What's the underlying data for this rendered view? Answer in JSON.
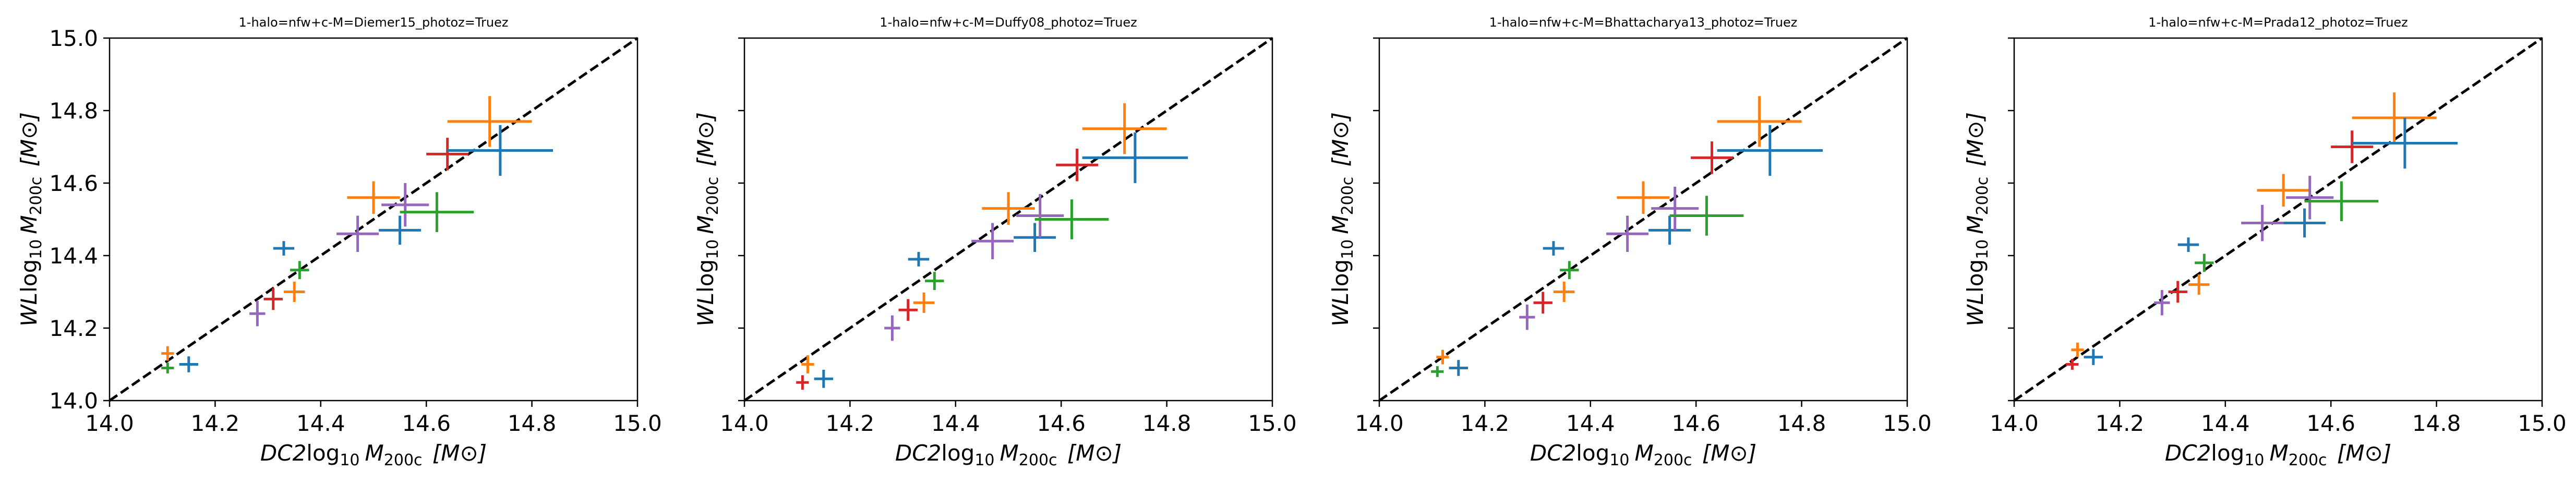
{
  "colors": {
    "blue": "#1f77b4",
    "orange": "#ff7f0e",
    "green": "#2ca02c",
    "red": "#d62728",
    "purple": "#9467bd",
    "reference_line": "#000000"
  },
  "chart_data": [
    {
      "type": "scatter",
      "title": "1-halo=nfw+c-M=Diemer15_photoz=Truez",
      "xlabel": "DC2log10 M200c [M⊙]",
      "ylabel": "WLlog10 M200c [M⊙]",
      "xlim": [
        14.0,
        15.0
      ],
      "ylim": [
        14.0,
        15.0
      ],
      "x_ticks": [
        "14.0",
        "14.2",
        "14.4",
        "14.6",
        "14.8",
        "15.0"
      ],
      "y_ticks": [
        "14.0",
        "14.2",
        "14.4",
        "14.6",
        "14.8",
        "15.0"
      ],
      "reference_line": "y = x (dashed black)",
      "grid": false,
      "points": [
        {
          "x": 14.11,
          "y": 14.09,
          "xerr": 0.012,
          "yerr": 0.015,
          "color": "green"
        },
        {
          "x": 14.11,
          "y": 14.13,
          "xerr": 0.012,
          "yerr": 0.02,
          "color": "orange"
        },
        {
          "x": 14.15,
          "y": 14.1,
          "xerr": 0.018,
          "yerr": 0.022,
          "color": "blue"
        },
        {
          "x": 14.28,
          "y": 14.24,
          "xerr": 0.015,
          "yerr": 0.035,
          "color": "purple"
        },
        {
          "x": 14.31,
          "y": 14.28,
          "xerr": 0.018,
          "yerr": 0.03,
          "color": "red"
        },
        {
          "x": 14.35,
          "y": 14.3,
          "xerr": 0.02,
          "yerr": 0.028,
          "color": "orange"
        },
        {
          "x": 14.36,
          "y": 14.36,
          "xerr": 0.018,
          "yerr": 0.025,
          "color": "green"
        },
        {
          "x": 14.33,
          "y": 14.42,
          "xerr": 0.02,
          "yerr": 0.02,
          "color": "blue"
        },
        {
          "x": 14.47,
          "y": 14.46,
          "xerr": 0.04,
          "yerr": 0.05,
          "color": "purple"
        },
        {
          "x": 14.5,
          "y": 14.56,
          "xerr": 0.05,
          "yerr": 0.045,
          "color": "orange"
        },
        {
          "x": 14.55,
          "y": 14.47,
          "xerr": 0.04,
          "yerr": 0.04,
          "color": "blue"
        },
        {
          "x": 14.56,
          "y": 14.54,
          "xerr": 0.045,
          "yerr": 0.06,
          "color": "purple"
        },
        {
          "x": 14.62,
          "y": 14.52,
          "xerr": 0.07,
          "yerr": 0.055,
          "color": "green"
        },
        {
          "x": 14.64,
          "y": 14.68,
          "xerr": 0.04,
          "yerr": 0.045,
          "color": "red"
        },
        {
          "x": 14.72,
          "y": 14.77,
          "xerr": 0.08,
          "yerr": 0.07,
          "color": "orange"
        },
        {
          "x": 14.74,
          "y": 14.69,
          "xerr": 0.1,
          "yerr": 0.07,
          "color": "blue"
        }
      ]
    },
    {
      "type": "scatter",
      "title": "1-halo=nfw+c-M=Duffy08_photoz=Truez",
      "xlabel": "DC2log10 M200c [M⊙]",
      "ylabel": "WLlog10 M200c [M⊙]",
      "xlim": [
        14.0,
        15.0
      ],
      "ylim": [
        14.0,
        15.0
      ],
      "x_ticks": [
        "14.0",
        "14.2",
        "14.4",
        "14.6",
        "14.8",
        "15.0"
      ],
      "y_ticks": [],
      "reference_line": "y = x (dashed black)",
      "grid": false,
      "points": [
        {
          "x": 14.11,
          "y": 14.05,
          "xerr": 0.012,
          "yerr": 0.02,
          "color": "red"
        },
        {
          "x": 14.12,
          "y": 14.1,
          "xerr": 0.012,
          "yerr": 0.025,
          "color": "orange"
        },
        {
          "x": 14.15,
          "y": 14.06,
          "xerr": 0.018,
          "yerr": 0.025,
          "color": "blue"
        },
        {
          "x": 14.28,
          "y": 14.2,
          "xerr": 0.015,
          "yerr": 0.035,
          "color": "purple"
        },
        {
          "x": 14.31,
          "y": 14.25,
          "xerr": 0.018,
          "yerr": 0.03,
          "color": "red"
        },
        {
          "x": 14.34,
          "y": 14.27,
          "xerr": 0.02,
          "yerr": 0.028,
          "color": "orange"
        },
        {
          "x": 14.36,
          "y": 14.33,
          "xerr": 0.018,
          "yerr": 0.025,
          "color": "green"
        },
        {
          "x": 14.33,
          "y": 14.39,
          "xerr": 0.02,
          "yerr": 0.02,
          "color": "blue"
        },
        {
          "x": 14.47,
          "y": 14.44,
          "xerr": 0.04,
          "yerr": 0.05,
          "color": "purple"
        },
        {
          "x": 14.5,
          "y": 14.53,
          "xerr": 0.05,
          "yerr": 0.045,
          "color": "orange"
        },
        {
          "x": 14.55,
          "y": 14.45,
          "xerr": 0.04,
          "yerr": 0.04,
          "color": "blue"
        },
        {
          "x": 14.56,
          "y": 14.51,
          "xerr": 0.045,
          "yerr": 0.06,
          "color": "purple"
        },
        {
          "x": 14.62,
          "y": 14.5,
          "xerr": 0.07,
          "yerr": 0.055,
          "color": "green"
        },
        {
          "x": 14.63,
          "y": 14.65,
          "xerr": 0.04,
          "yerr": 0.045,
          "color": "red"
        },
        {
          "x": 14.72,
          "y": 14.75,
          "xerr": 0.08,
          "yerr": 0.07,
          "color": "orange"
        },
        {
          "x": 14.74,
          "y": 14.67,
          "xerr": 0.1,
          "yerr": 0.07,
          "color": "blue"
        }
      ]
    },
    {
      "type": "scatter",
      "title": "1-halo=nfw+c-M=Bhattacharya13_photoz=Truez",
      "xlabel": "DC2log10 M200c [M⊙]",
      "ylabel": "WLlog10 M200c [M⊙]",
      "xlim": [
        14.0,
        15.0
      ],
      "ylim": [
        14.0,
        15.0
      ],
      "x_ticks": [
        "14.0",
        "14.2",
        "14.4",
        "14.6",
        "14.8",
        "15.0"
      ],
      "y_ticks": [],
      "reference_line": "y = x (dashed black)",
      "grid": false,
      "points": [
        {
          "x": 14.11,
          "y": 14.08,
          "xerr": 0.012,
          "yerr": 0.015,
          "color": "green"
        },
        {
          "x": 14.12,
          "y": 14.12,
          "xerr": 0.012,
          "yerr": 0.02,
          "color": "orange"
        },
        {
          "x": 14.15,
          "y": 14.09,
          "xerr": 0.018,
          "yerr": 0.022,
          "color": "blue"
        },
        {
          "x": 14.28,
          "y": 14.23,
          "xerr": 0.015,
          "yerr": 0.035,
          "color": "purple"
        },
        {
          "x": 14.31,
          "y": 14.27,
          "xerr": 0.018,
          "yerr": 0.03,
          "color": "red"
        },
        {
          "x": 14.35,
          "y": 14.3,
          "xerr": 0.02,
          "yerr": 0.028,
          "color": "orange"
        },
        {
          "x": 14.36,
          "y": 14.36,
          "xerr": 0.018,
          "yerr": 0.025,
          "color": "green"
        },
        {
          "x": 14.33,
          "y": 14.42,
          "xerr": 0.02,
          "yerr": 0.02,
          "color": "blue"
        },
        {
          "x": 14.47,
          "y": 14.46,
          "xerr": 0.04,
          "yerr": 0.05,
          "color": "purple"
        },
        {
          "x": 14.5,
          "y": 14.56,
          "xerr": 0.05,
          "yerr": 0.045,
          "color": "orange"
        },
        {
          "x": 14.55,
          "y": 14.47,
          "xerr": 0.04,
          "yerr": 0.04,
          "color": "blue"
        },
        {
          "x": 14.56,
          "y": 14.53,
          "xerr": 0.045,
          "yerr": 0.06,
          "color": "purple"
        },
        {
          "x": 14.62,
          "y": 14.51,
          "xerr": 0.07,
          "yerr": 0.055,
          "color": "green"
        },
        {
          "x": 14.63,
          "y": 14.67,
          "xerr": 0.04,
          "yerr": 0.045,
          "color": "red"
        },
        {
          "x": 14.72,
          "y": 14.77,
          "xerr": 0.08,
          "yerr": 0.07,
          "color": "orange"
        },
        {
          "x": 14.74,
          "y": 14.69,
          "xerr": 0.1,
          "yerr": 0.07,
          "color": "blue"
        }
      ]
    },
    {
      "type": "scatter",
      "title": "1-halo=nfw+c-M=Prada12_photoz=Truez",
      "xlabel": "DC2log10 M200c [M⊙]",
      "ylabel": "WLlog10 M200c [M⊙]",
      "xlim": [
        14.0,
        15.0
      ],
      "ylim": [
        14.0,
        15.0
      ],
      "x_ticks": [
        "14.0",
        "14.2",
        "14.4",
        "14.6",
        "14.8",
        "15.0"
      ],
      "y_ticks": [],
      "reference_line": "y = x (dashed black)",
      "grid": false,
      "points": [
        {
          "x": 14.11,
          "y": 14.1,
          "xerr": 0.012,
          "yerr": 0.015,
          "color": "red"
        },
        {
          "x": 14.12,
          "y": 14.14,
          "xerr": 0.012,
          "yerr": 0.02,
          "color": "orange"
        },
        {
          "x": 14.15,
          "y": 14.12,
          "xerr": 0.018,
          "yerr": 0.022,
          "color": "blue"
        },
        {
          "x": 14.28,
          "y": 14.27,
          "xerr": 0.015,
          "yerr": 0.035,
          "color": "purple"
        },
        {
          "x": 14.31,
          "y": 14.3,
          "xerr": 0.018,
          "yerr": 0.03,
          "color": "red"
        },
        {
          "x": 14.35,
          "y": 14.32,
          "xerr": 0.02,
          "yerr": 0.028,
          "color": "orange"
        },
        {
          "x": 14.36,
          "y": 14.38,
          "xerr": 0.018,
          "yerr": 0.025,
          "color": "green"
        },
        {
          "x": 14.33,
          "y": 14.43,
          "xerr": 0.02,
          "yerr": 0.02,
          "color": "blue"
        },
        {
          "x": 14.47,
          "y": 14.49,
          "xerr": 0.04,
          "yerr": 0.05,
          "color": "purple"
        },
        {
          "x": 14.51,
          "y": 14.58,
          "xerr": 0.05,
          "yerr": 0.045,
          "color": "orange"
        },
        {
          "x": 14.55,
          "y": 14.49,
          "xerr": 0.04,
          "yerr": 0.04,
          "color": "blue"
        },
        {
          "x": 14.56,
          "y": 14.56,
          "xerr": 0.045,
          "yerr": 0.06,
          "color": "purple"
        },
        {
          "x": 14.62,
          "y": 14.55,
          "xerr": 0.07,
          "yerr": 0.055,
          "color": "green"
        },
        {
          "x": 14.64,
          "y": 14.7,
          "xerr": 0.04,
          "yerr": 0.045,
          "color": "red"
        },
        {
          "x": 14.72,
          "y": 14.78,
          "xerr": 0.08,
          "yerr": 0.07,
          "color": "orange"
        },
        {
          "x": 14.74,
          "y": 14.71,
          "xerr": 0.1,
          "yerr": 0.07,
          "color": "blue"
        }
      ]
    }
  ]
}
